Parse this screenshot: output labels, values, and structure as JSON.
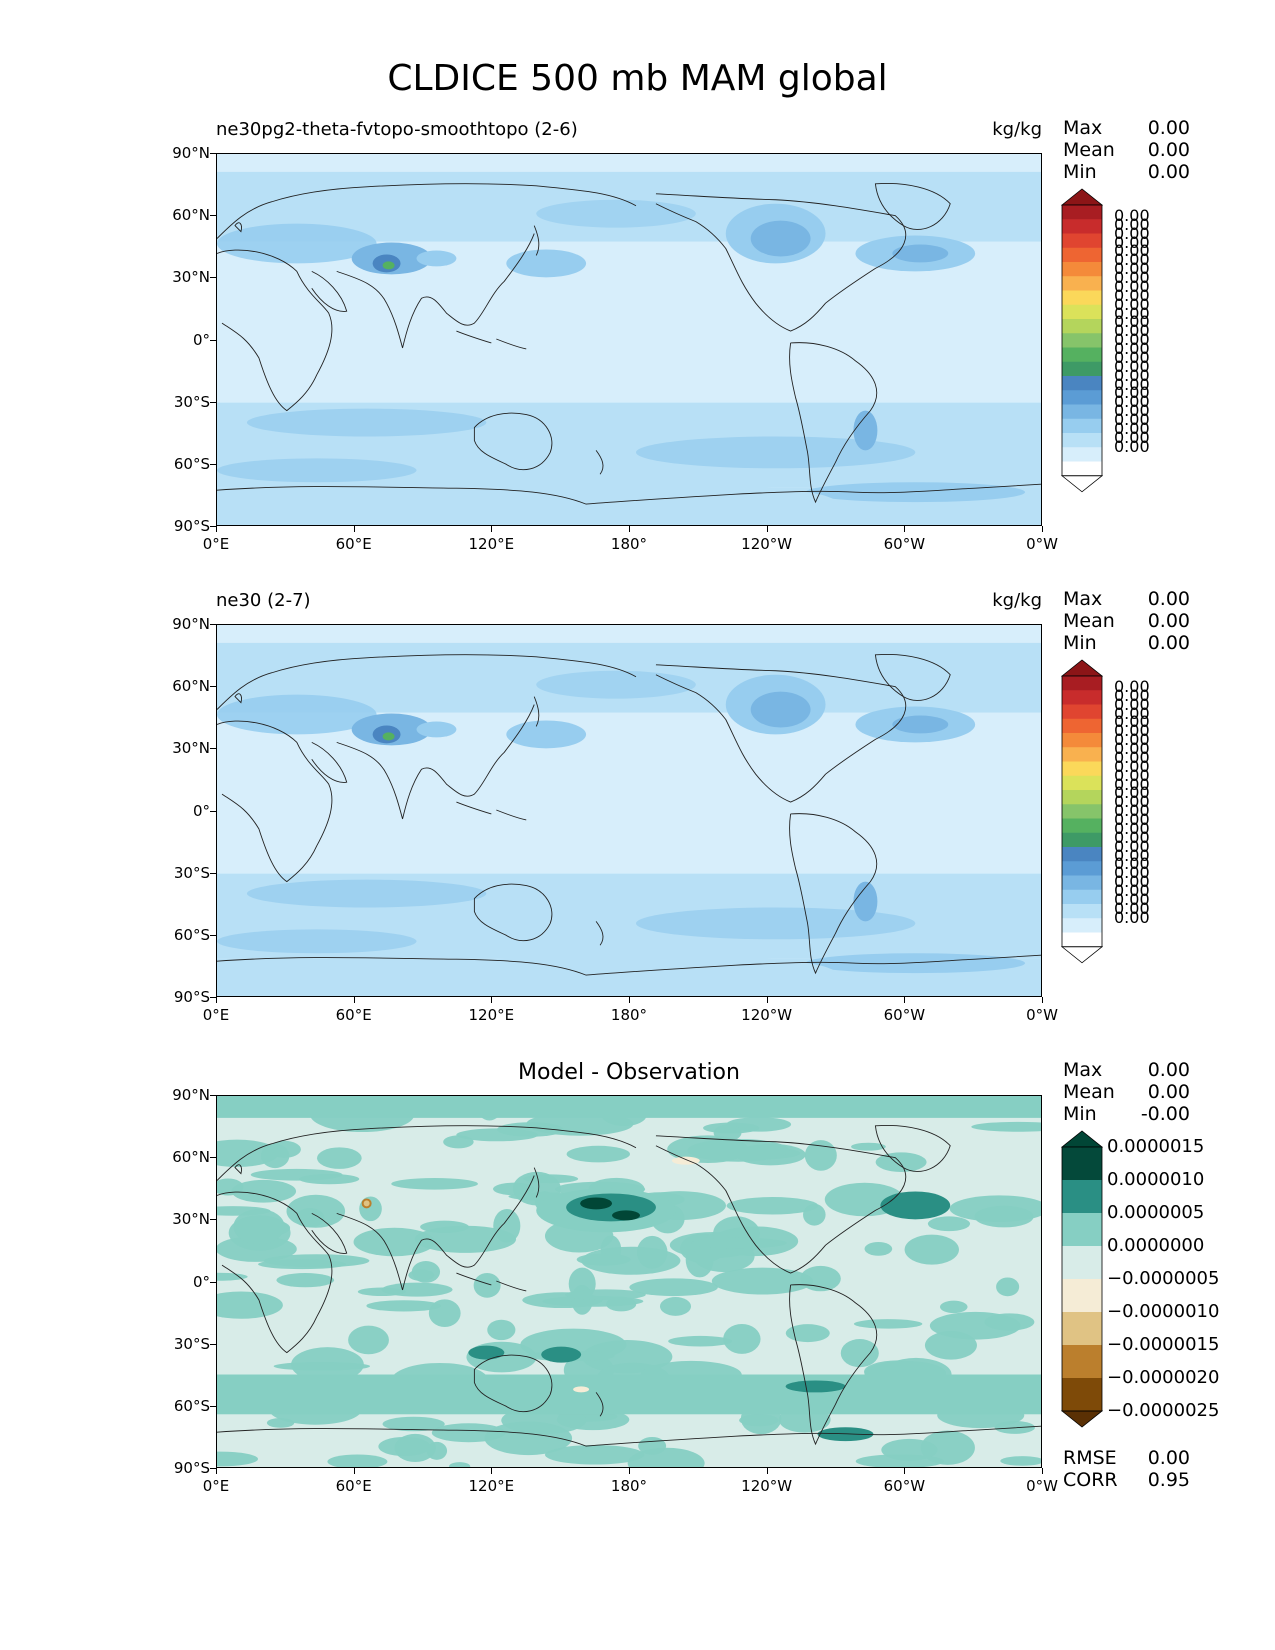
{
  "title": "CLDICE 500 mb MAM global",
  "axes": {
    "lat_labels": [
      "90°N",
      "60°N",
      "30°N",
      "0°",
      "30°S",
      "60°S",
      "90°S"
    ],
    "lon_labels": [
      "0°E",
      "60°E",
      "120°E",
      "180°",
      "120°W",
      "60°W",
      "0°W"
    ]
  },
  "panels": [
    {
      "id": "test",
      "title_left": "ne30pg2-theta-fvtopo-smoothtopo (2-6)",
      "units": "kg/kg",
      "stats": [
        {
          "name": "Max",
          "value": "0.00"
        },
        {
          "name": "Mean",
          "value": "0.00"
        },
        {
          "name": "Min",
          "value": "0.00"
        }
      ],
      "colorbar_labels": [
        "0.00",
        "0.00",
        "0.00",
        "0.00",
        "0.00",
        "0.00",
        "0.00",
        "0.00",
        "0.00",
        "0.00",
        "0.00",
        "0.00",
        "0.00",
        "0.00",
        "0.00",
        "0.00",
        "0.00",
        "0.00",
        "0.00",
        "0.00",
        "0.00",
        "0.00",
        "0.00",
        "0.00",
        "0.00",
        "0.00",
        "0.00"
      ]
    },
    {
      "id": "ref",
      "title_left": "ne30 (2-7)",
      "units": "kg/kg",
      "stats": [
        {
          "name": "Max",
          "value": "0.00"
        },
        {
          "name": "Mean",
          "value": "0.00"
        },
        {
          "name": "Min",
          "value": "0.00"
        }
      ],
      "colorbar_labels": [
        "0.00",
        "0.00",
        "0.00",
        "0.00",
        "0.00",
        "0.00",
        "0.00",
        "0.00",
        "0.00",
        "0.00",
        "0.00",
        "0.00",
        "0.00",
        "0.00",
        "0.00",
        "0.00",
        "0.00",
        "0.00",
        "0.00",
        "0.00",
        "0.00",
        "0.00",
        "0.00",
        "0.00",
        "0.00",
        "0.00",
        "0.00"
      ]
    },
    {
      "id": "diff",
      "title_center": "Model - Observation",
      "stats": [
        {
          "name": "Max",
          "value": "0.00"
        },
        {
          "name": "Mean",
          "value": "0.00"
        },
        {
          "name": "Min",
          "value": "-0.00"
        }
      ],
      "colorbar_labels": [
        "0.0000015",
        "0.0000010",
        "0.0000005",
        "0.0000000",
        "−0.0000005",
        "−0.0000010",
        "−0.0000015",
        "−0.0000020",
        "−0.0000025"
      ],
      "metrics": [
        {
          "name": "RMSE",
          "value": "0.00"
        },
        {
          "name": "CORR",
          "value": "0.95"
        }
      ]
    }
  ],
  "colors": {
    "seq": [
      "#ffffff",
      "#d7eefb",
      "#b8e0f6",
      "#97cdef",
      "#79b6e3",
      "#5b9cd5",
      "#4a85c1",
      "#3e9a66",
      "#55b160",
      "#86c46a",
      "#b4d55c",
      "#dbe25a",
      "#fbd85a",
      "#f9b14f",
      "#f48a3a",
      "#ee6532",
      "#e04530",
      "#c82c2c",
      "#a81d22",
      "#8c1517"
    ],
    "diff": [
      "#014636",
      "#04493a",
      "#2a8f84",
      "#86cfc3",
      "#d8ece8",
      "#f5ecd6",
      "#e0c384",
      "#bb7f2d",
      "#7e4a08",
      "#5a3004"
    ],
    "land_line": "#222222"
  }
}
